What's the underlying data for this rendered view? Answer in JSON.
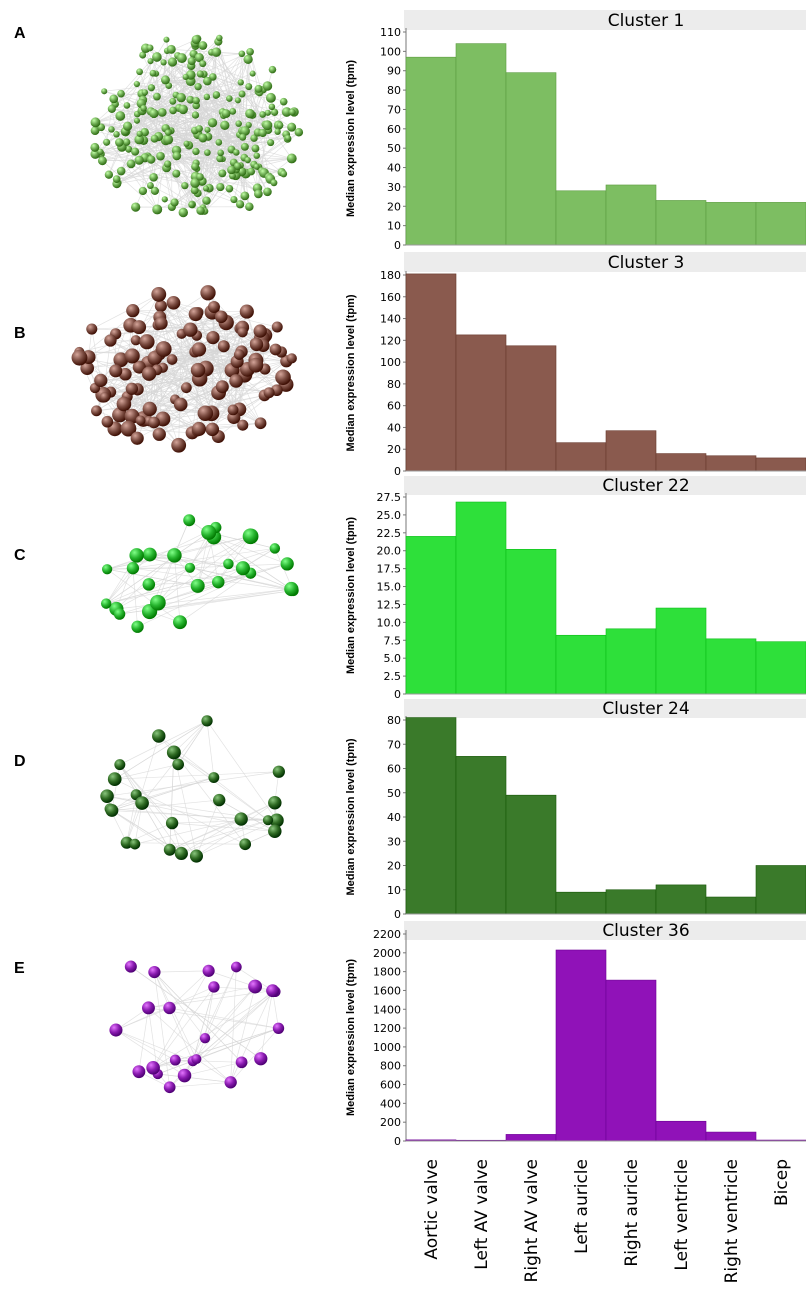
{
  "chart_data": [
    {
      "panel": "A",
      "type": "bar",
      "title": "Cluster 1",
      "ylabel": "Median expression level (tpm)",
      "color": "#7dbe62",
      "network_color": "#6aa84f",
      "ylim": [
        0,
        110
      ],
      "yticks": [
        "0",
        "10",
        "20",
        "30",
        "40",
        "50",
        "60",
        "70",
        "80",
        "90",
        "100",
        "110"
      ],
      "values": [
        97,
        104,
        89,
        28,
        31,
        23,
        22,
        22
      ]
    },
    {
      "panel": "B",
      "type": "bar",
      "title": "Cluster 3",
      "ylabel": "Median expression level (tpm)",
      "color": "#8a5a4e",
      "network_color": "#7a4b40",
      "ylim": [
        0,
        180
      ],
      "yticks": [
        "0",
        "20",
        "40",
        "60",
        "80",
        "100",
        "120",
        "140",
        "160",
        "180"
      ],
      "values": [
        181,
        125,
        115,
        26,
        37,
        16,
        14,
        12
      ]
    },
    {
      "panel": "C",
      "type": "bar",
      "title": "Cluster 22",
      "ylabel": "Median expression level (tpm)",
      "color": "#2ee03a",
      "network_color": "#27b52f",
      "ylim": [
        0,
        27.5
      ],
      "yticks": [
        "0",
        "2.5",
        "5.0",
        "7.5",
        "10.0",
        "12.5",
        "15.0",
        "17.5",
        "20.0",
        "22.5",
        "25.0",
        "27.5"
      ],
      "values": [
        22.0,
        26.8,
        20.2,
        8.2,
        9.1,
        12.0,
        7.7,
        7.3
      ]
    },
    {
      "panel": "D",
      "type": "bar",
      "title": "Cluster 24",
      "ylabel": "Median expression level (tpm)",
      "color": "#3a7a2a",
      "network_color": "#2f6b23",
      "ylim": [
        0,
        80
      ],
      "yticks": [
        "0",
        "10",
        "20",
        "30",
        "40",
        "50",
        "60",
        "70",
        "80"
      ],
      "values": [
        81,
        65,
        49,
        9,
        10,
        12,
        7,
        20
      ]
    },
    {
      "panel": "E",
      "type": "bar",
      "title": "Cluster 36",
      "ylabel": "Median expression level (tpm)",
      "color": "#9012b8",
      "network_color": "#8a1bb0",
      "ylim": [
        0,
        2200
      ],
      "yticks": [
        "0",
        "200",
        "400",
        "600",
        "800",
        "1000",
        "1200",
        "1400",
        "1600",
        "1800",
        "2000",
        "2200"
      ],
      "values": [
        12,
        8,
        70,
        2030,
        1710,
        210,
        95,
        10
      ]
    }
  ],
  "categories": [
    "Aortic valve",
    "Left AV valve",
    "Right AV valve",
    "Left auricle",
    "Right auricle",
    "Left ventricle",
    "Right ventricle",
    "Bicep"
  ]
}
